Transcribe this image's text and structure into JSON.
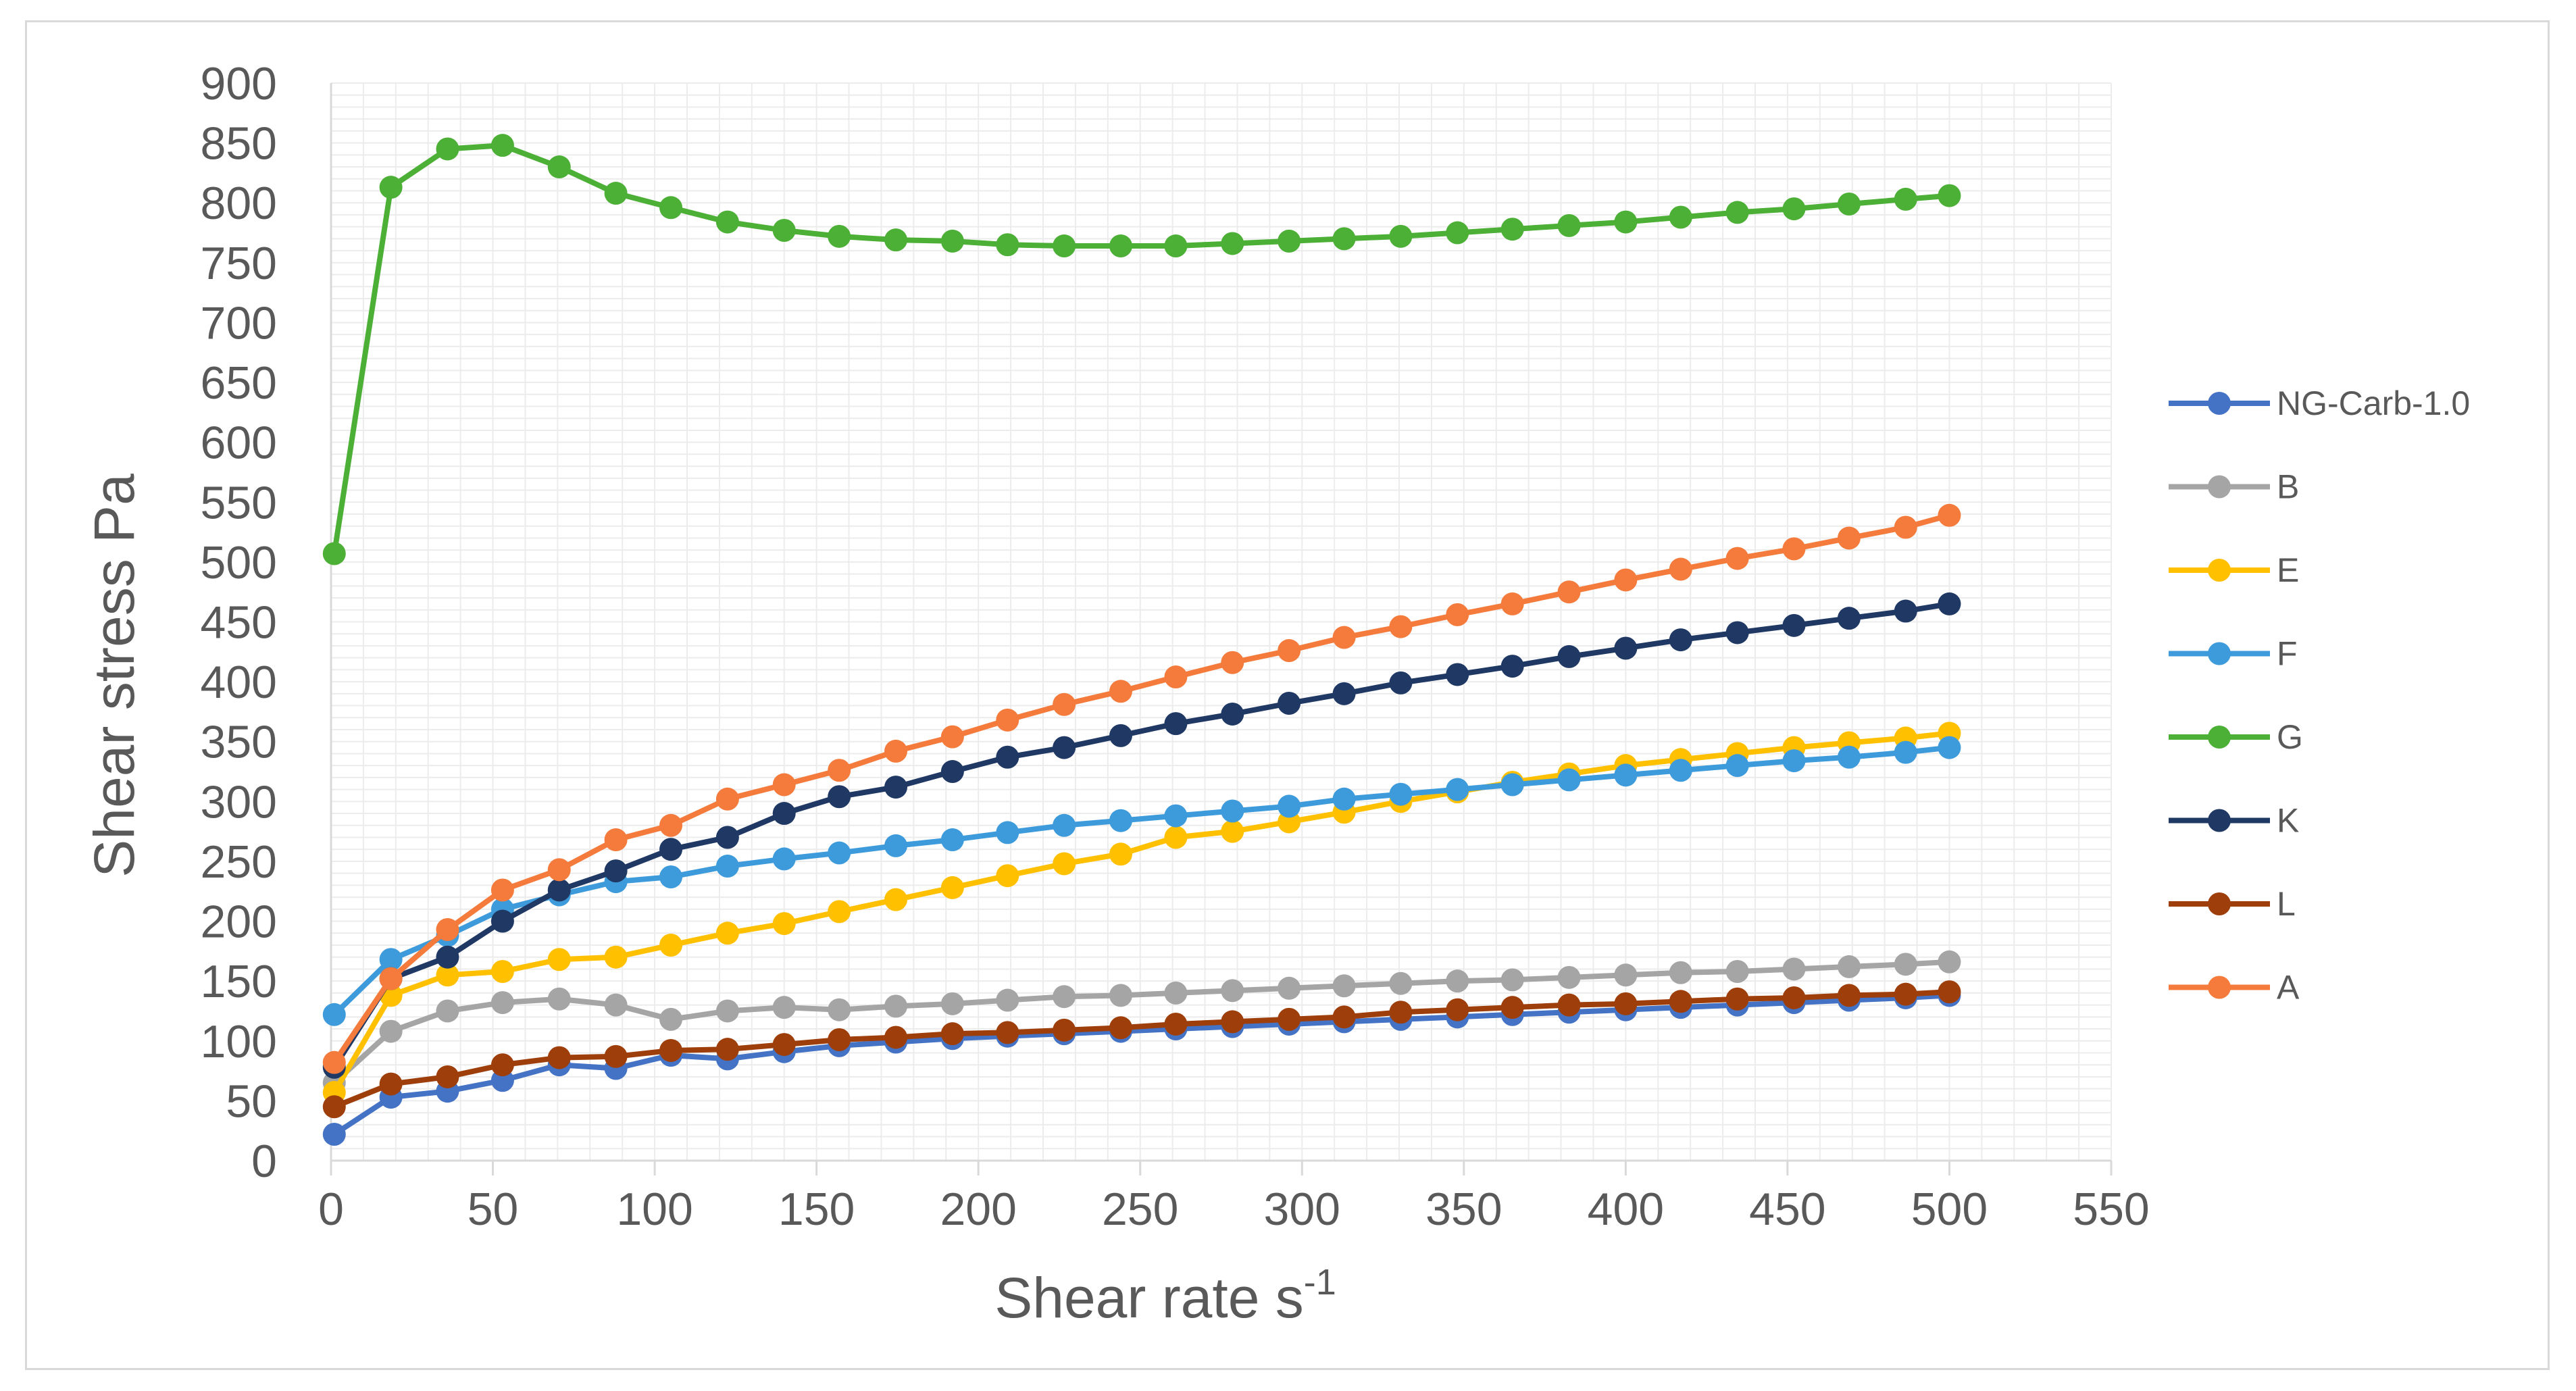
{
  "chart_data": {
    "type": "line",
    "title": "",
    "xlabel": "Shear rate s",
    "xlabel_sup": "-1",
    "ylabel": "Shear stress Pa",
    "xlim": [
      0,
      550
    ],
    "ylim": [
      0,
      900
    ],
    "x_ticks": [
      0,
      50,
      100,
      150,
      200,
      250,
      300,
      350,
      400,
      450,
      500,
      550
    ],
    "y_ticks": [
      0,
      50,
      100,
      150,
      200,
      250,
      300,
      350,
      400,
      450,
      500,
      550,
      600,
      650,
      700,
      750,
      800,
      850,
      900
    ],
    "grid": "vertical and horizontal",
    "legend_position": "right",
    "x": [
      1,
      18.5,
      36,
      53,
      70.5,
      88,
      105,
      122.5,
      140,
      157,
      174.5,
      192,
      209,
      226.5,
      244,
      261,
      278.5,
      296,
      313,
      330.5,
      348,
      365,
      382.5,
      400,
      417,
      434.5,
      452,
      469,
      486.5,
      500
    ],
    "series": [
      {
        "name": "NG-Carb-1.0",
        "color": "#4472C4",
        "values": [
          22,
          53,
          58,
          67,
          80,
          77,
          88,
          85,
          91,
          96,
          99,
          102,
          104,
          106,
          108,
          110,
          112,
          114,
          116,
          118,
          120,
          122,
          124,
          126,
          128,
          130,
          132,
          134,
          136,
          138
        ]
      },
      {
        "name": "B",
        "color": "#A5A5A5",
        "values": [
          65,
          108,
          125,
          132,
          135,
          130,
          118,
          125,
          128,
          126,
          129,
          131,
          134,
          137,
          138,
          140,
          142,
          144,
          146,
          148,
          150,
          151,
          153,
          155,
          157,
          158,
          160,
          162,
          164,
          166
        ]
      },
      {
        "name": "E",
        "color": "#FFC000",
        "values": [
          57,
          138,
          155,
          158,
          168,
          170,
          180,
          190,
          198,
          208,
          218,
          228,
          238,
          248,
          256,
          270,
          275,
          283,
          291,
          300,
          308,
          316,
          323,
          330,
          335,
          340,
          345,
          349,
          353,
          357
        ]
      },
      {
        "name": "F",
        "color": "#3E9BDB",
        "values": [
          122,
          168,
          188,
          210,
          222,
          233,
          237,
          246,
          252,
          257,
          263,
          268,
          274,
          280,
          284,
          288,
          292,
          296,
          302,
          306,
          310,
          314,
          318,
          322,
          326,
          330,
          334,
          337,
          341,
          345
        ]
      },
      {
        "name": "G",
        "color": "#4CAF36",
        "values": [
          507,
          813,
          845,
          848,
          830,
          808,
          796,
          784,
          777,
          772,
          769,
          768,
          765,
          764,
          764,
          764,
          766,
          768,
          770,
          772,
          775,
          778,
          781,
          784,
          788,
          792,
          795,
          799,
          803,
          806
        ]
      },
      {
        "name": "K",
        "color": "#1F3864",
        "values": [
          78,
          152,
          170,
          200,
          226,
          242,
          260,
          270,
          290,
          304,
          312,
          325,
          337,
          345,
          355,
          365,
          373,
          382,
          390,
          399,
          406,
          413,
          421,
          428,
          435,
          441,
          447,
          453,
          459,
          465
        ]
      },
      {
        "name": "L",
        "color": "#9E3E0A",
        "values": [
          45,
          64,
          70,
          80,
          86,
          87,
          92,
          93,
          97,
          101,
          103,
          106,
          107,
          109,
          111,
          114,
          116,
          118,
          120,
          124,
          126,
          128,
          130,
          131,
          133,
          135,
          136,
          138,
          139,
          141
        ]
      },
      {
        "name": "A",
        "color": "#F47B3C",
        "values": [
          82,
          152,
          193,
          226,
          243,
          268,
          280,
          302,
          314,
          326,
          342,
          354,
          368,
          381,
          392,
          404,
          416,
          426,
          437,
          446,
          456,
          465,
          475,
          485,
          494,
          503,
          511,
          520,
          529,
          539
        ]
      }
    ]
  }
}
